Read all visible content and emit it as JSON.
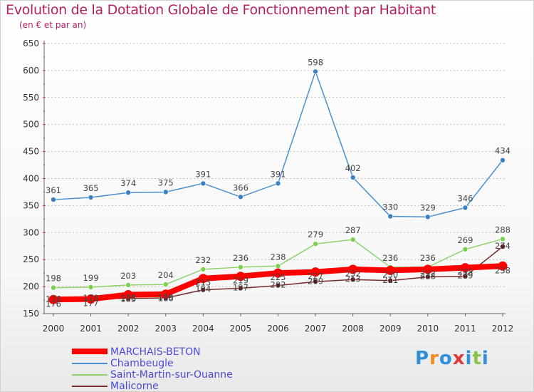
{
  "header": {
    "title": "Evolution de la Dotation Globale de Fonctionnement par Habitant",
    "subtitle": "(en € et par an)"
  },
  "logo": {
    "letters": [
      "P",
      "r",
      "o",
      "x",
      "i",
      "t",
      "i"
    ]
  },
  "colors": {
    "title": "#b51f63",
    "legend_text": "#4b4bd6",
    "grid": "#bdbdbd"
  },
  "chart_data": {
    "type": "line",
    "title": "Evolution de la Dotation Globale de Fonctionnement par Habitant",
    "subtitle": "(en € et par an)",
    "xlabel": "",
    "ylabel": "",
    "x": [
      "2000",
      "2001",
      "2002",
      "2003",
      "2004",
      "2005",
      "2006",
      "2007",
      "2008",
      "2009",
      "2010",
      "2011",
      "2012"
    ],
    "ylim": [
      150,
      650
    ],
    "yticks": [
      150,
      200,
      250,
      300,
      350,
      400,
      450,
      500,
      550,
      600,
      650
    ],
    "grid": "horizontal",
    "legend_position": "bottom-left",
    "series": [
      {
        "name": "MARCHAIS-BETON",
        "color": "#ff0000",
        "values": [
          176,
          177,
          185,
          186,
          215,
          219,
          225,
          227,
          232,
          230,
          232,
          235,
          238
        ],
        "labels_shown": [
          true,
          true,
          true,
          true,
          true,
          true,
          true,
          true,
          true,
          true,
          true,
          true,
          true
        ]
      },
      {
        "name": "Chambeugle",
        "color": "#4a8fd0",
        "values": [
          361,
          365,
          374,
          375,
          391,
          366,
          391,
          598,
          402,
          330,
          329,
          346,
          434
        ],
        "labels_shown": [
          true,
          true,
          true,
          true,
          true,
          true,
          true,
          true,
          true,
          true,
          true,
          true,
          true
        ]
      },
      {
        "name": "Saint-Martin-sur-Ouanne",
        "color": "#8fd16a",
        "values": [
          198,
          199,
          203,
          204,
          232,
          236,
          238,
          279,
          287,
          236,
          236,
          269,
          288
        ],
        "labels_shown": [
          true,
          true,
          true,
          true,
          true,
          true,
          true,
          true,
          true,
          true,
          true,
          true,
          true
        ]
      },
      {
        "name": "Malicorne",
        "color": "#7a2a2a",
        "values": [
          176,
          178,
          178,
          179,
          194,
          197,
          202,
          209,
          213,
          211,
          218,
          219,
          274
        ],
        "labels_shown": [
          true,
          true,
          true,
          true,
          true,
          true,
          true,
          true,
          true,
          true,
          true,
          true,
          true
        ]
      }
    ]
  }
}
